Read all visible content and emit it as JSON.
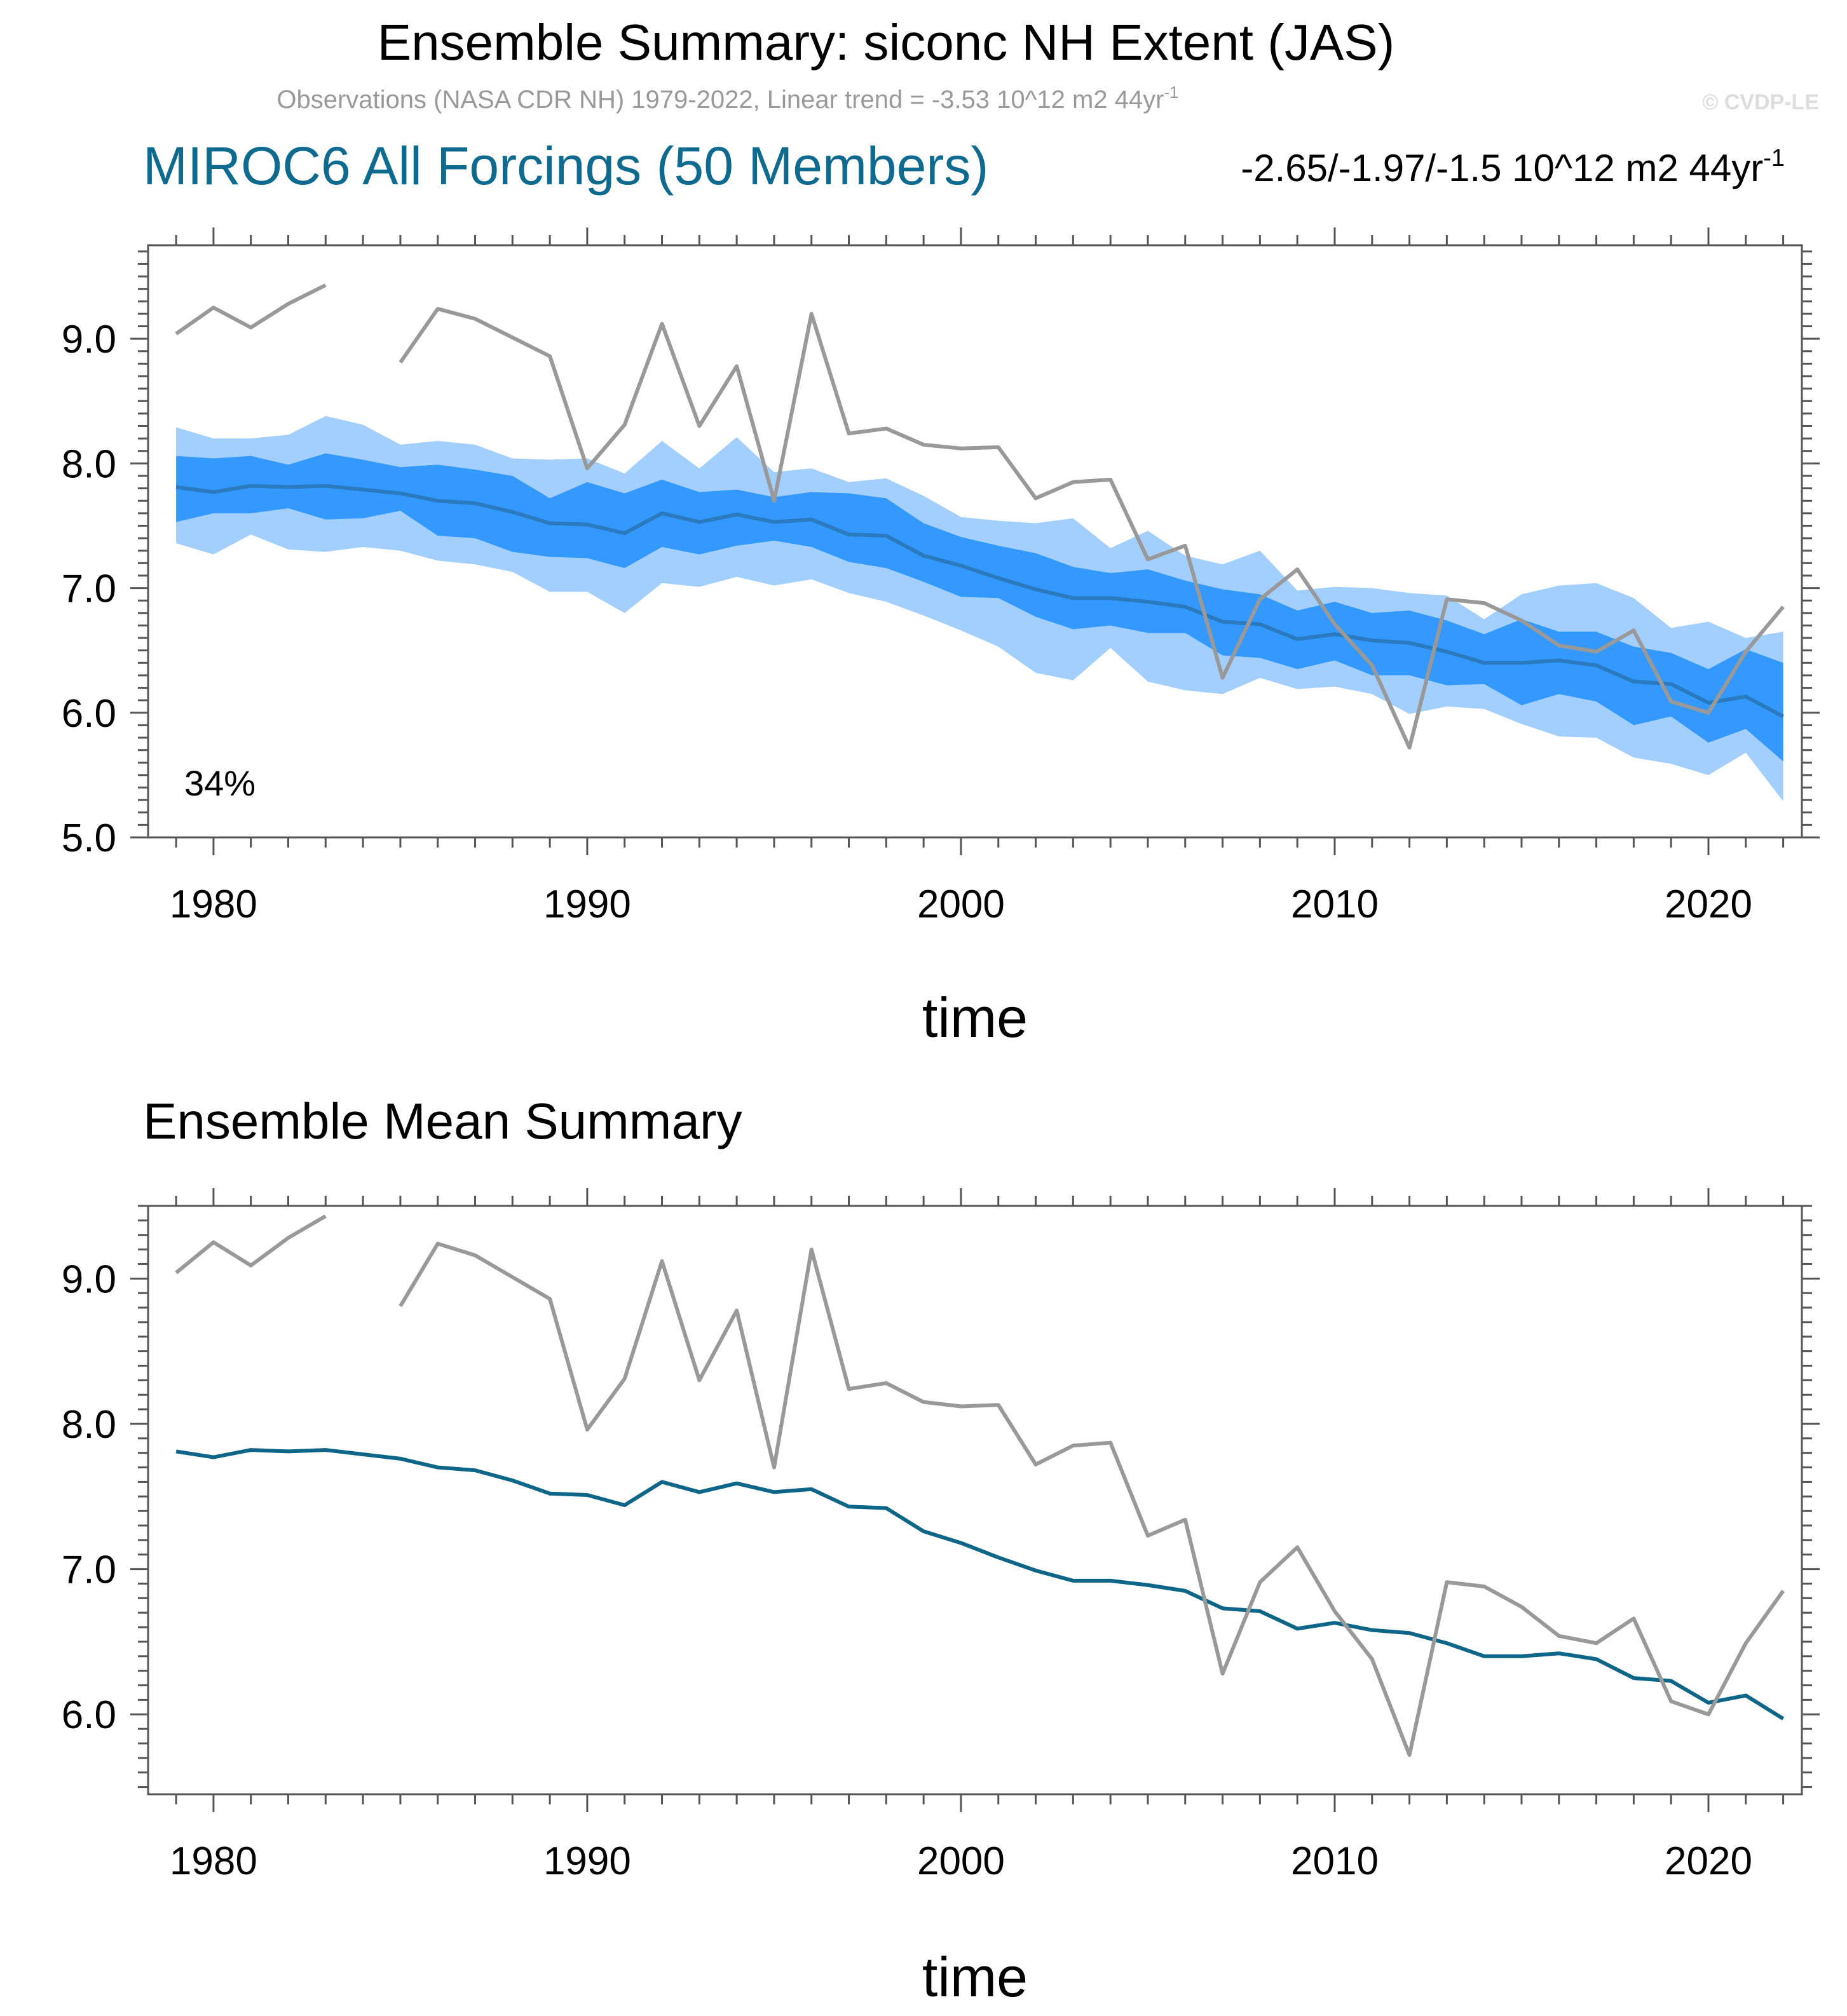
{
  "header": {
    "title": "Ensemble Summary: siconc NH Extent (JAS)",
    "obs_note": "Observations (NASA CDR NH) 1979-2022, Linear trend = -3.53 10^12 m2 44yr",
    "obs_note_sup": "-1",
    "watermark": "© CVDP-LE",
    "model_title": "MIROC6 All Forcings (50 Members)",
    "model_trend": "-2.65/-1.97/-1.5 10^12 m2 44yr",
    "model_trend_sup": "-1"
  },
  "colors": {
    "outer_band": "#a2cffe",
    "inner_band": "#3399ff",
    "ensemble_mean_top": "#2a7ac0",
    "ensemble_mean_bottom": "#0d6687",
    "observations": "#999999",
    "model_title": "#0f6a8f"
  },
  "chart_data": [
    {
      "type": "line",
      "panel": "top",
      "title": "",
      "annotation": "34%",
      "xlabel": "time",
      "ylabel": "",
      "xlim": [
        1978.25,
        2022.5
      ],
      "ylim": [
        5.0,
        9.75
      ],
      "xticks": [
        "1980",
        "1990",
        "2000",
        "2010",
        "2020"
      ],
      "yticks": [
        "5.0",
        "6.0",
        "7.0",
        "8.0",
        "9.0"
      ],
      "x": [
        1979,
        1980,
        1981,
        1982,
        1983,
        1984,
        1985,
        1986,
        1987,
        1988,
        1989,
        1990,
        1991,
        1992,
        1993,
        1994,
        1995,
        1996,
        1997,
        1998,
        1999,
        2000,
        2001,
        2002,
        2003,
        2004,
        2005,
        2006,
        2007,
        2008,
        2009,
        2010,
        2011,
        2012,
        2013,
        2014,
        2015,
        2016,
        2017,
        2018,
        2019,
        2020,
        2021,
        2022
      ],
      "series": [
        {
          "name": "ensemble mean",
          "values": [
            7.81,
            7.77,
            7.82,
            7.81,
            7.82,
            7.79,
            7.76,
            7.7,
            7.68,
            7.61,
            7.52,
            7.51,
            7.44,
            7.6,
            7.53,
            7.59,
            7.53,
            7.55,
            7.43,
            7.42,
            7.26,
            7.18,
            7.08,
            6.99,
            6.92,
            6.92,
            6.89,
            6.85,
            6.73,
            6.71,
            6.59,
            6.63,
            6.58,
            6.56,
            6.49,
            6.4,
            6.4,
            6.42,
            6.38,
            6.25,
            6.23,
            6.08,
            6.13,
            5.97
          ]
        },
        {
          "name": "observations",
          "values": [
            9.04,
            9.25,
            9.09,
            9.28,
            9.43,
            null,
            8.81,
            9.24,
            9.16,
            9.01,
            8.86,
            7.96,
            8.31,
            9.12,
            8.3,
            8.78,
            7.7,
            9.2,
            8.24,
            8.28,
            8.15,
            8.12,
            8.13,
            7.72,
            7.85,
            7.87,
            7.23,
            7.34,
            6.28,
            6.91,
            7.15,
            6.71,
            6.38,
            5.72,
            6.91,
            6.88,
            6.74,
            6.54,
            6.49,
            6.66,
            6.09,
            6.0,
            6.49,
            6.85
          ]
        },
        {
          "name": "10-90% range low",
          "values": [
            7.53,
            7.6,
            7.6,
            7.64,
            7.55,
            7.56,
            7.62,
            7.42,
            7.4,
            7.29,
            7.25,
            7.24,
            7.16,
            7.33,
            7.27,
            7.34,
            7.38,
            7.33,
            7.21,
            7.16,
            7.05,
            6.93,
            6.92,
            6.77,
            6.67,
            6.7,
            6.64,
            6.64,
            6.46,
            6.44,
            6.35,
            6.42,
            6.3,
            6.3,
            6.22,
            6.23,
            6.06,
            6.15,
            6.09,
            5.9,
            5.97,
            5.76,
            5.87,
            5.61
          ]
        },
        {
          "name": "10-90% range high",
          "values": [
            8.06,
            8.04,
            8.06,
            7.99,
            8.08,
            8.03,
            7.97,
            7.99,
            7.95,
            7.9,
            7.72,
            7.85,
            7.76,
            7.87,
            7.77,
            7.79,
            7.73,
            7.77,
            7.76,
            7.72,
            7.52,
            7.41,
            7.34,
            7.28,
            7.17,
            7.12,
            7.15,
            7.06,
            6.99,
            6.95,
            6.82,
            6.89,
            6.8,
            6.82,
            6.74,
            6.63,
            6.75,
            6.65,
            6.65,
            6.53,
            6.48,
            6.35,
            6.51,
            6.4
          ]
        },
        {
          "name": "min-max range low",
          "values": [
            7.36,
            7.27,
            7.43,
            7.31,
            7.29,
            7.33,
            7.3,
            7.22,
            7.19,
            7.13,
            6.97,
            6.97,
            6.8,
            7.04,
            7.01,
            7.09,
            7.02,
            7.07,
            6.96,
            6.89,
            6.78,
            6.66,
            6.53,
            6.32,
            6.26,
            6.52,
            6.25,
            6.18,
            6.15,
            6.28,
            6.19,
            6.21,
            6.15,
            5.99,
            6.05,
            6.03,
            5.91,
            5.81,
            5.8,
            5.64,
            5.59,
            5.5,
            5.68,
            5.29
          ]
        },
        {
          "name": "min-max range high",
          "values": [
            8.29,
            8.2,
            8.2,
            8.23,
            8.38,
            8.31,
            8.15,
            8.18,
            8.15,
            8.04,
            8.03,
            8.04,
            7.92,
            8.18,
            7.96,
            8.21,
            7.93,
            7.96,
            7.85,
            7.88,
            7.74,
            7.57,
            7.54,
            7.52,
            7.56,
            7.32,
            7.46,
            7.26,
            7.19,
            7.3,
            6.98,
            7.01,
            7.0,
            6.96,
            6.94,
            6.75,
            6.95,
            7.02,
            7.04,
            6.92,
            6.68,
            6.73,
            6.6,
            6.65
          ]
        }
      ]
    },
    {
      "type": "line",
      "panel": "bottom",
      "title": "Ensemble Mean Summary",
      "xlabel": "time",
      "ylabel": "",
      "xlim": [
        1978.25,
        2022.5
      ],
      "ylim": [
        5.45,
        9.5
      ],
      "xticks": [
        "1980",
        "1990",
        "2000",
        "2010",
        "2020"
      ],
      "yticks": [
        "6.0",
        "7.0",
        "8.0",
        "9.0"
      ],
      "x": [
        1979,
        1980,
        1981,
        1982,
        1983,
        1984,
        1985,
        1986,
        1987,
        1988,
        1989,
        1990,
        1991,
        1992,
        1993,
        1994,
        1995,
        1996,
        1997,
        1998,
        1999,
        2000,
        2001,
        2002,
        2003,
        2004,
        2005,
        2006,
        2007,
        2008,
        2009,
        2010,
        2011,
        2012,
        2013,
        2014,
        2015,
        2016,
        2017,
        2018,
        2019,
        2020,
        2021,
        2022
      ],
      "series": [
        {
          "name": "ensemble mean",
          "values": [
            7.81,
            7.77,
            7.82,
            7.81,
            7.82,
            7.79,
            7.76,
            7.7,
            7.68,
            7.61,
            7.52,
            7.51,
            7.44,
            7.6,
            7.53,
            7.59,
            7.53,
            7.55,
            7.43,
            7.42,
            7.26,
            7.18,
            7.08,
            6.99,
            6.92,
            6.92,
            6.89,
            6.85,
            6.73,
            6.71,
            6.59,
            6.63,
            6.58,
            6.56,
            6.49,
            6.4,
            6.4,
            6.42,
            6.38,
            6.25,
            6.23,
            6.08,
            6.13,
            5.97
          ]
        },
        {
          "name": "observations",
          "values": [
            9.04,
            9.25,
            9.09,
            9.28,
            9.43,
            null,
            8.81,
            9.24,
            9.16,
            9.01,
            8.86,
            7.96,
            8.31,
            9.12,
            8.3,
            8.78,
            7.7,
            9.2,
            8.24,
            8.28,
            8.15,
            8.12,
            8.13,
            7.72,
            7.85,
            7.87,
            7.23,
            7.34,
            6.28,
            6.91,
            7.15,
            6.71,
            6.38,
            5.72,
            6.91,
            6.88,
            6.74,
            6.54,
            6.49,
            6.66,
            6.09,
            6.0,
            6.49,
            6.85
          ]
        }
      ]
    }
  ]
}
